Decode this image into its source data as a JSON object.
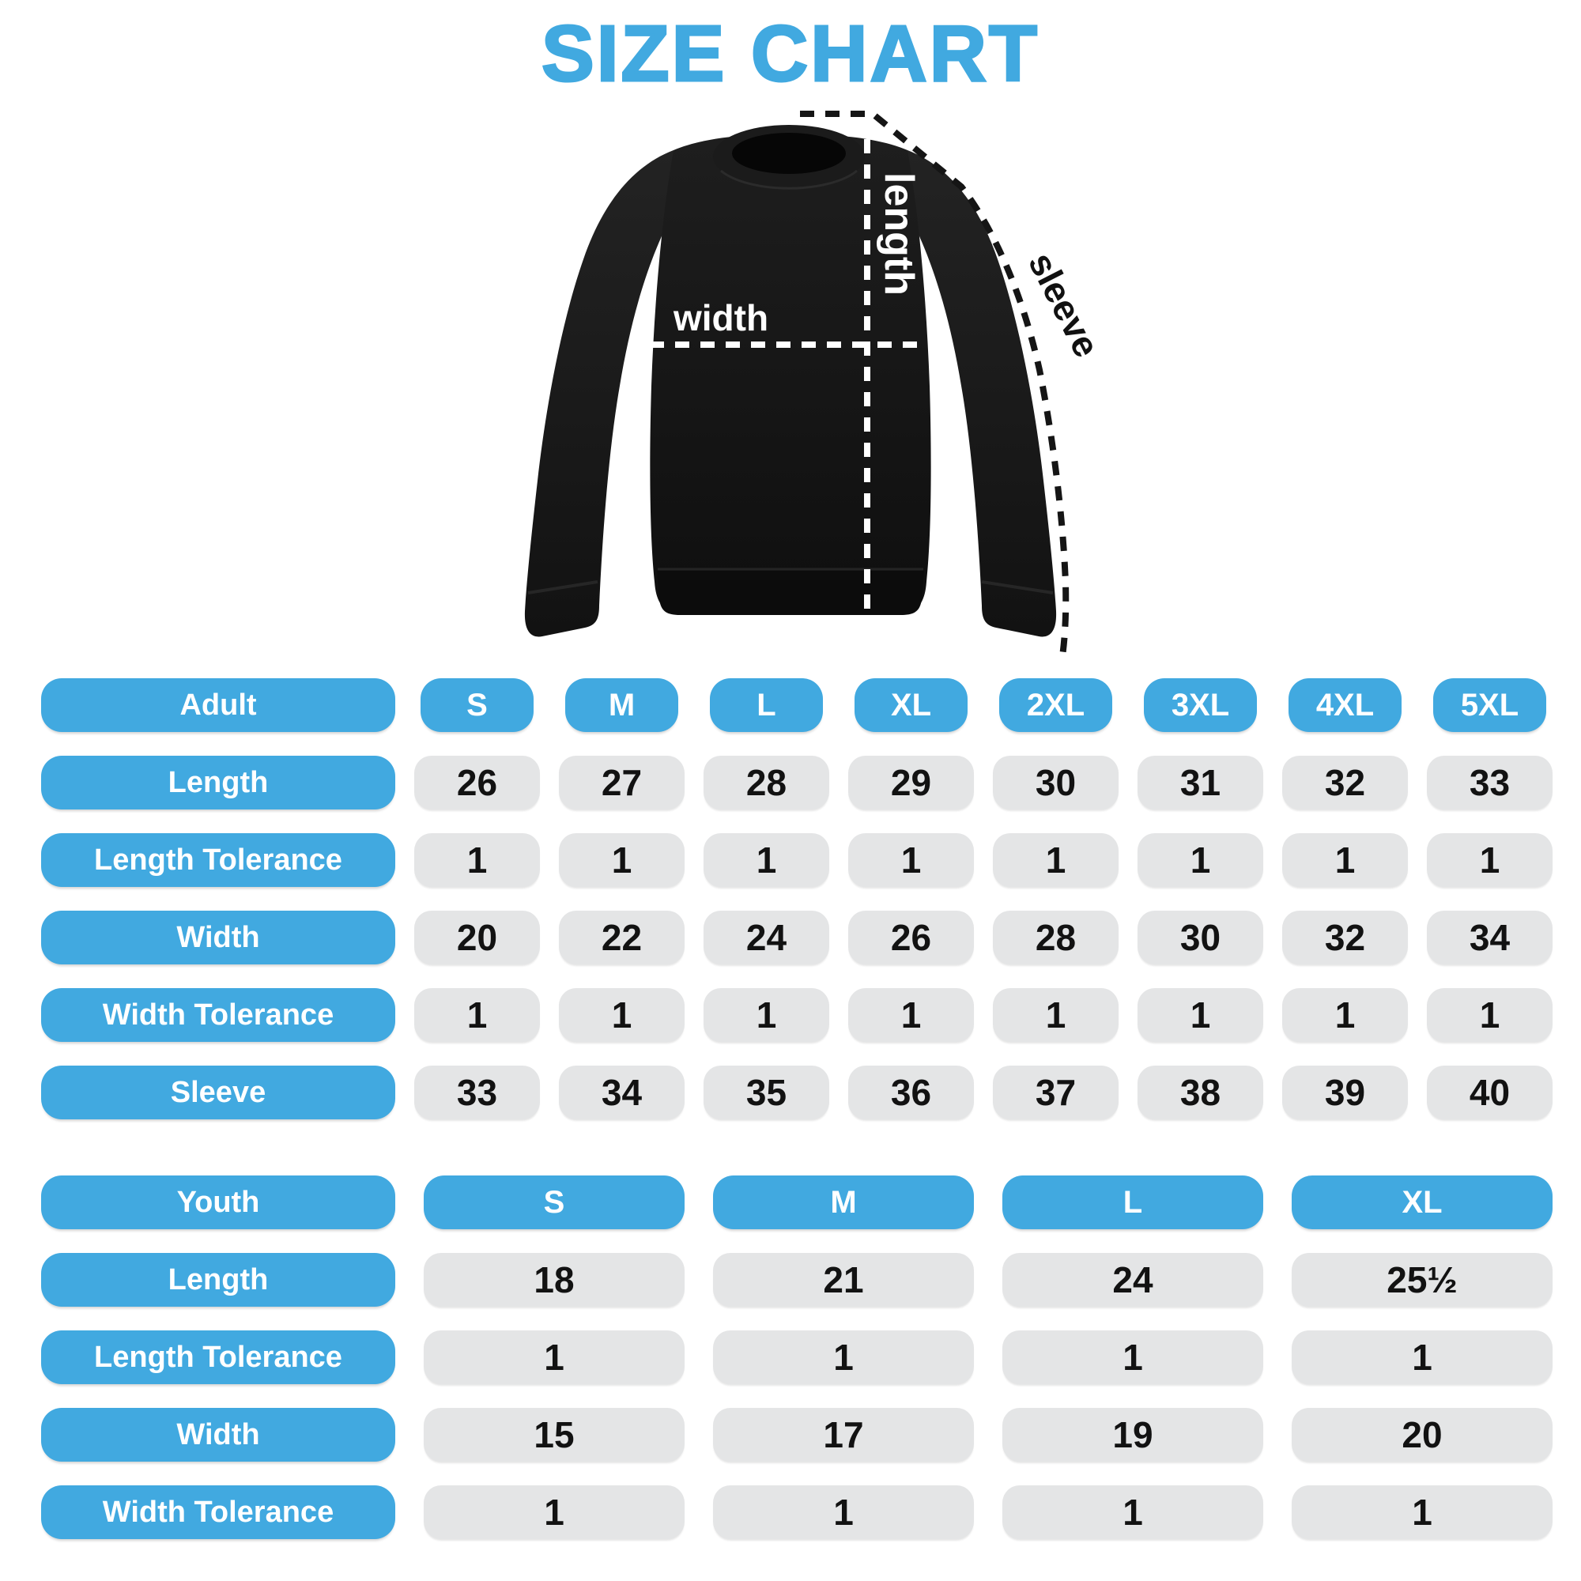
{
  "title": "SIZE CHART",
  "colors": {
    "accent_blue": "#41A9E0",
    "cell_gray": "#E4E5E6",
    "ink": "#121212",
    "shirt_black": "#141414",
    "annotation_white": "#ffffff"
  },
  "diagram": {
    "garment": "black crewneck sweatshirt",
    "length_label": "length",
    "width_label": "width",
    "sleeve_label": "sleeve"
  },
  "adult_table": {
    "header": {
      "label": "Adult",
      "sizes": [
        "S",
        "M",
        "L",
        "XL",
        "2XL",
        "3XL",
        "4XL",
        "5XL"
      ]
    },
    "rows": [
      {
        "label": "Length",
        "values": [
          "26",
          "27",
          "28",
          "29",
          "30",
          "31",
          "32",
          "33"
        ]
      },
      {
        "label": "Length Tolerance",
        "values": [
          "1",
          "1",
          "1",
          "1",
          "1",
          "1",
          "1",
          "1"
        ]
      },
      {
        "label": "Width",
        "values": [
          "20",
          "22",
          "24",
          "26",
          "28",
          "30",
          "32",
          "34"
        ]
      },
      {
        "label": "Width Tolerance",
        "values": [
          "1",
          "1",
          "1",
          "1",
          "1",
          "1",
          "1",
          "1"
        ]
      },
      {
        "label": "Sleeve",
        "values": [
          "33",
          "34",
          "35",
          "36",
          "37",
          "38",
          "39",
          "40"
        ]
      }
    ]
  },
  "youth_table": {
    "header": {
      "label": "Youth",
      "sizes": [
        "S",
        "M",
        "L",
        "XL"
      ]
    },
    "rows": [
      {
        "label": "Length",
        "values": [
          "18",
          "21",
          "24",
          "25½"
        ]
      },
      {
        "label": "Length Tolerance",
        "values": [
          "1",
          "1",
          "1",
          "1"
        ]
      },
      {
        "label": "Width",
        "values": [
          "15",
          "17",
          "19",
          "20"
        ]
      },
      {
        "label": "Width Tolerance",
        "values": [
          "1",
          "1",
          "1",
          "1"
        ]
      }
    ]
  },
  "chart_data": [
    {
      "type": "table",
      "title": "Adult size chart (inches)",
      "columns": [
        "Adult",
        "S",
        "M",
        "L",
        "XL",
        "2XL",
        "3XL",
        "4XL",
        "5XL"
      ],
      "rows": [
        [
          "Length",
          26,
          27,
          28,
          29,
          30,
          31,
          32,
          33
        ],
        [
          "Length Tolerance",
          1,
          1,
          1,
          1,
          1,
          1,
          1,
          1
        ],
        [
          "Width",
          20,
          22,
          24,
          26,
          28,
          30,
          32,
          34
        ],
        [
          "Width Tolerance",
          1,
          1,
          1,
          1,
          1,
          1,
          1,
          1
        ],
        [
          "Sleeve",
          33,
          34,
          35,
          36,
          37,
          38,
          39,
          40
        ]
      ]
    },
    {
      "type": "table",
      "title": "Youth size chart (inches)",
      "columns": [
        "Youth",
        "S",
        "M",
        "L",
        "XL"
      ],
      "rows": [
        [
          "Length",
          18,
          21,
          24,
          "25 1/2"
        ],
        [
          "Length Tolerance",
          1,
          1,
          1,
          1
        ],
        [
          "Width",
          15,
          17,
          19,
          20
        ],
        [
          "Width Tolerance",
          1,
          1,
          1,
          1
        ]
      ]
    }
  ]
}
